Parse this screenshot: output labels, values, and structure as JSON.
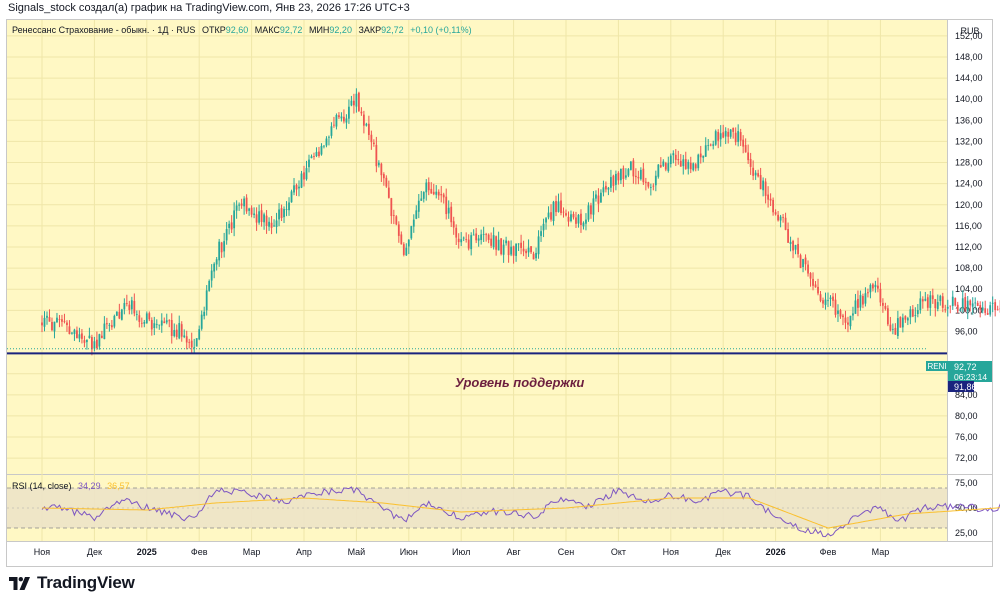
{
  "caption": "Signals_stock создал(а) график на TradingView.com, Янв 23, 2026 17:26 UTC+3",
  "header": {
    "symbol": "Ренессанс Страхование - обыкн. · 1Д · RUS",
    "open_label": "ОТКР",
    "open": "92,60",
    "high_label": "МАКС",
    "high": "92,72",
    "low_label": "МИН",
    "low": "92,20",
    "close_label": "ЗАКР",
    "close": "92,72",
    "change": "+0,10 (+0,11%)"
  },
  "currency": "RUB",
  "ticker_tag": "RENI",
  "last_price": "92,72",
  "countdown": "06:23:14",
  "support_price": "91,86",
  "support_label": "Уровень поддержки",
  "rsi": {
    "label": "RSI (14, close)",
    "value1": "34,29",
    "value2": "36,57"
  },
  "brand": "TradingView",
  "colors": {
    "background": "#fff8c4",
    "up": "#26a69a",
    "down": "#ef5350",
    "support_line": "#1a237e",
    "arrow": "#8b2252",
    "rsi_line": "#7e57c2",
    "rsi_ma": "#fbc02d"
  },
  "chart_data": {
    "type": "candlestick",
    "title": "Ренессанс Страхование - обыкн. · 1Д · RUS",
    "xlabel": "",
    "ylabel": "RUB",
    "ylim": [
      69,
      155
    ],
    "y_ticks": [
      "152,00",
      "148,00",
      "144,00",
      "140,00",
      "136,00",
      "132,00",
      "128,00",
      "124,00",
      "120,00",
      "116,00",
      "112,00",
      "108,00",
      "104,00",
      "100,00",
      "96,00",
      "88,00",
      "84,00",
      "80,00",
      "76,00",
      "72,00"
    ],
    "x_ticks": [
      "Ноя",
      "Дек",
      "2025",
      "Фев",
      "Мар",
      "Апр",
      "Май",
      "Июн",
      "Июл",
      "Авг",
      "Сен",
      "Окт",
      "Ноя",
      "Дек",
      "2026",
      "Фев",
      "Мар"
    ],
    "price_path": [
      {
        "t": 0,
        "v": 98
      },
      {
        "t": 0.5,
        "v": 96.5
      },
      {
        "t": 1,
        "v": 93.5
      },
      {
        "t": 1.6,
        "v": 101.5
      },
      {
        "t": 2.1,
        "v": 97
      },
      {
        "t": 2.6,
        "v": 96.5
      },
      {
        "t": 2.9,
        "v": 92.5
      },
      {
        "t": 3.3,
        "v": 110
      },
      {
        "t": 3.8,
        "v": 120
      },
      {
        "t": 4.4,
        "v": 116
      },
      {
        "t": 5.0,
        "v": 126
      },
      {
        "t": 5.5,
        "v": 134
      },
      {
        "t": 6.0,
        "v": 140
      },
      {
        "t": 6.4,
        "v": 128
      },
      {
        "t": 6.9,
        "v": 111
      },
      {
        "t": 7.3,
        "v": 123
      },
      {
        "t": 7.7,
        "v": 120
      },
      {
        "t": 8.0,
        "v": 112
      },
      {
        "t": 8.4,
        "v": 114.5
      },
      {
        "t": 8.8,
        "v": 112
      },
      {
        "t": 9.4,
        "v": 111
      },
      {
        "t": 9.8,
        "v": 120
      },
      {
        "t": 10.3,
        "v": 116.5
      },
      {
        "t": 10.8,
        "v": 124
      },
      {
        "t": 11.3,
        "v": 127
      },
      {
        "t": 11.6,
        "v": 124
      },
      {
        "t": 12.0,
        "v": 129
      },
      {
        "t": 12.4,
        "v": 127
      },
      {
        "t": 12.8,
        "v": 133
      },
      {
        "t": 13.3,
        "v": 133
      },
      {
        "t": 13.6,
        "v": 126
      },
      {
        "t": 14.2,
        "v": 115
      },
      {
        "t": 14.7,
        "v": 105
      },
      {
        "t": 15.3,
        "v": 98
      },
      {
        "t": 15.9,
        "v": 104.5
      },
      {
        "t": 16.2,
        "v": 96
      },
      {
        "t": 16.5,
        "v": 99
      },
      {
        "t": 16.9,
        "v": 102
      },
      {
        "t": 17.5,
        "v": 101
      },
      {
        "t": 18.0,
        "v": 100
      },
      {
        "t": 18.5,
        "v": 101.5
      },
      {
        "t": 18.7,
        "v": 98.5
      },
      {
        "t": 19.2,
        "v": 97.5
      },
      {
        "t": 19.5,
        "v": 94
      },
      {
        "t": 19.8,
        "v": 93.5
      },
      {
        "t": 20.2,
        "v": 92.7
      }
    ],
    "last_price": 92.72,
    "support_level": 91.86,
    "forecast_arrow": {
      "from": {
        "t": 20.3,
        "v": 92.8
      },
      "to": {
        "t": 21.7,
        "v": 101
      }
    },
    "rsi": {
      "label": "RSI (14, close)",
      "ylim": [
        20,
        80
      ],
      "bands": [
        30,
        70
      ],
      "y_ticks": [
        "75,00",
        "50,00",
        "25,00"
      ],
      "path": [
        {
          "t": 0,
          "v": 52
        },
        {
          "t": 0.5,
          "v": 48
        },
        {
          "t": 1,
          "v": 40
        },
        {
          "t": 1.5,
          "v": 58
        },
        {
          "t": 2.2,
          "v": 47
        },
        {
          "t": 2.9,
          "v": 38
        },
        {
          "t": 3.3,
          "v": 68
        },
        {
          "t": 4.0,
          "v": 64
        },
        {
          "t": 4.6,
          "v": 55
        },
        {
          "t": 5.2,
          "v": 66
        },
        {
          "t": 6.0,
          "v": 68
        },
        {
          "t": 6.5,
          "v": 48
        },
        {
          "t": 6.9,
          "v": 38
        },
        {
          "t": 7.4,
          "v": 55
        },
        {
          "t": 8.0,
          "v": 40
        },
        {
          "t": 8.6,
          "v": 47
        },
        {
          "t": 9.4,
          "v": 42
        },
        {
          "t": 9.9,
          "v": 60
        },
        {
          "t": 10.4,
          "v": 50
        },
        {
          "t": 11.0,
          "v": 68
        },
        {
          "t": 11.6,
          "v": 55
        },
        {
          "t": 12.0,
          "v": 63
        },
        {
          "t": 12.5,
          "v": 57
        },
        {
          "t": 13.0,
          "v": 66
        },
        {
          "t": 13.5,
          "v": 62
        },
        {
          "t": 14.0,
          "v": 40
        },
        {
          "t": 14.6,
          "v": 28
        },
        {
          "t": 15.1,
          "v": 22
        },
        {
          "t": 15.5,
          "v": 40
        },
        {
          "t": 16.0,
          "v": 53
        },
        {
          "t": 16.3,
          "v": 34
        },
        {
          "t": 16.8,
          "v": 50
        },
        {
          "t": 17.5,
          "v": 52
        },
        {
          "t": 18.1,
          "v": 48
        },
        {
          "t": 18.6,
          "v": 57
        },
        {
          "t": 19.0,
          "v": 40
        },
        {
          "t": 19.6,
          "v": 35
        },
        {
          "t": 20.2,
          "v": 34
        }
      ],
      "ma": [
        {
          "t": 0,
          "v": 50
        },
        {
          "t": 2,
          "v": 48
        },
        {
          "t": 3.3,
          "v": 55
        },
        {
          "t": 5,
          "v": 60
        },
        {
          "t": 6.5,
          "v": 55
        },
        {
          "t": 8,
          "v": 46
        },
        {
          "t": 10,
          "v": 50
        },
        {
          "t": 12,
          "v": 60
        },
        {
          "t": 13.5,
          "v": 60
        },
        {
          "t": 15,
          "v": 30
        },
        {
          "t": 16.5,
          "v": 44
        },
        {
          "t": 18.5,
          "v": 51
        },
        {
          "t": 20.2,
          "v": 37
        }
      ]
    }
  }
}
